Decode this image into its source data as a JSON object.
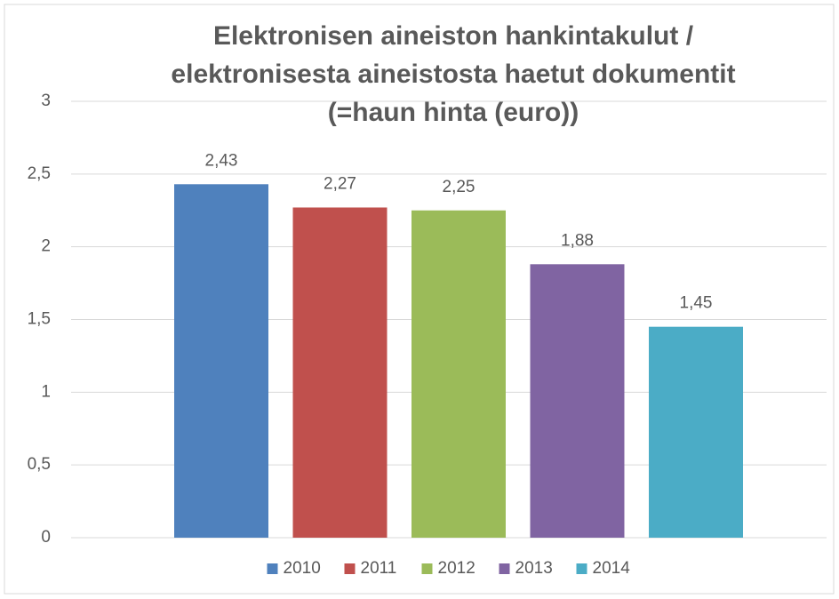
{
  "chart_data": {
    "type": "bar",
    "title": [
      "Elektronisen aineiston hankintakulut /",
      "elektronisesta aineistosta haetut dokumentit",
      "(=haun hinta (euro))"
    ],
    "categories": [
      null
    ],
    "series": [
      {
        "name": "2010",
        "color": "#4f81bd",
        "values": [
          2.43
        ],
        "value_labels": [
          "2,43"
        ]
      },
      {
        "name": "2011",
        "color": "#c0504d",
        "values": [
          2.27
        ],
        "value_labels": [
          "2,27"
        ]
      },
      {
        "name": "2012",
        "color": "#9bbb59",
        "values": [
          2.25
        ],
        "value_labels": [
          "2,25"
        ]
      },
      {
        "name": "2013",
        "color": "#8064a2",
        "values": [
          1.88
        ],
        "value_labels": [
          "1,88"
        ]
      },
      {
        "name": "2014",
        "color": "#4bacc6",
        "values": [
          1.45
        ],
        "value_labels": [
          "1,45"
        ]
      }
    ],
    "ylim": [
      0,
      3
    ],
    "yticks": [
      0,
      {
        "value": 0.5,
        "label": "0,5"
      },
      1,
      {
        "value": 1.5,
        "label": "1,5"
      },
      2,
      {
        "value": 2.5,
        "label": "2,5"
      },
      3
    ],
    "grid": true,
    "legend": "bottom"
  }
}
